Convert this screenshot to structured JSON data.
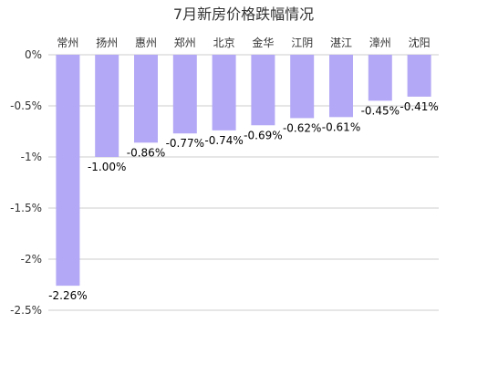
{
  "chart_data": {
    "type": "bar",
    "title": "7月新房价格跌幅情况",
    "categories": [
      "常州",
      "扬州",
      "惠州",
      "郑州",
      "北京",
      "金华",
      "江阴",
      "湛江",
      "漳州",
      "沈阳"
    ],
    "values": [
      -2.26,
      -1.0,
      -0.86,
      -0.77,
      -0.74,
      -0.69,
      -0.62,
      -0.61,
      -0.45,
      -0.41
    ],
    "value_labels": [
      "-2.26%",
      "-1.00%",
      "-0.86%",
      "-0.77%",
      "-0.74%",
      "-0.69%",
      "-0.62%",
      "-0.61%",
      "-0.45%",
      "-0.41%"
    ],
    "y_ticks": [
      0,
      -0.5,
      -1,
      -1.5,
      -2,
      -2.5
    ],
    "y_tick_labels": [
      "0%",
      "-0.5%",
      "-1%",
      "-1.5%",
      "-2%",
      "-2.5%"
    ],
    "ylim": [
      -2.5,
      0
    ],
    "xlabel": "",
    "ylabel": "",
    "grid": true,
    "category_axis_position": "top",
    "bar_color": "#b3a8f5"
  }
}
